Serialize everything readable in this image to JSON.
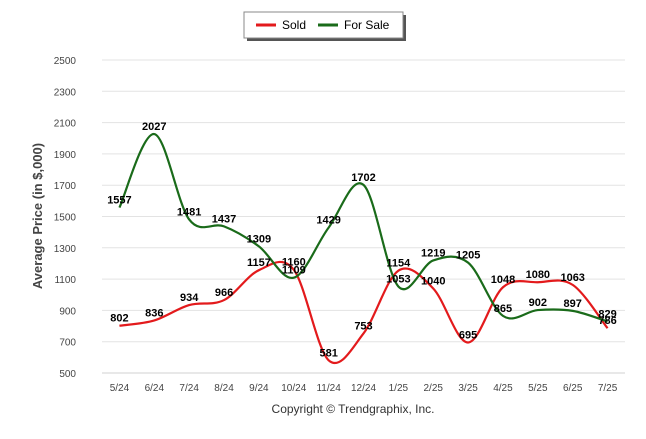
{
  "chart_data": {
    "type": "line",
    "ylabel": "Average Price (in $,000)",
    "ylim": [
      500,
      2500
    ],
    "yticks": [
      500,
      700,
      900,
      1100,
      1300,
      1500,
      1700,
      1900,
      2100,
      2300,
      2500
    ],
    "categories": [
      "5/24",
      "6/24",
      "7/24",
      "8/24",
      "9/24",
      "10/24",
      "11/24",
      "12/24",
      "1/25",
      "2/25",
      "3/25",
      "4/25",
      "5/25",
      "6/25",
      "7/25"
    ],
    "series": [
      {
        "name": "Sold",
        "color": "#e31a1c",
        "values": [
          802,
          836,
          934,
          966,
          1157,
          1160,
          581,
          753,
          1154,
          1040,
          695,
          1048,
          1080,
          1063,
          786
        ],
        "labels": [
          "802",
          "836",
          "934",
          "966",
          "1157",
          "1160",
          "581",
          "753",
          "1154",
          "1040",
          "695",
          "1048",
          "1080",
          "1063",
          "786"
        ]
      },
      {
        "name": "For Sale",
        "color": "#1a6b1a",
        "values": [
          1557,
          2027,
          1481,
          1437,
          1309,
          1109,
          1429,
          1702,
          1053,
          1219,
          1205,
          865,
          902,
          897,
          829
        ],
        "labels": [
          "1557",
          "2027",
          "1481",
          "1437",
          "1309",
          "1109",
          "1429",
          "1702",
          "1053",
          "1219",
          "1205",
          "865",
          "902",
          "897",
          "829"
        ]
      }
    ],
    "grid": true,
    "legend": "top-center"
  },
  "footer": {
    "copyright": "Copyright © Trendgraphix, Inc."
  }
}
